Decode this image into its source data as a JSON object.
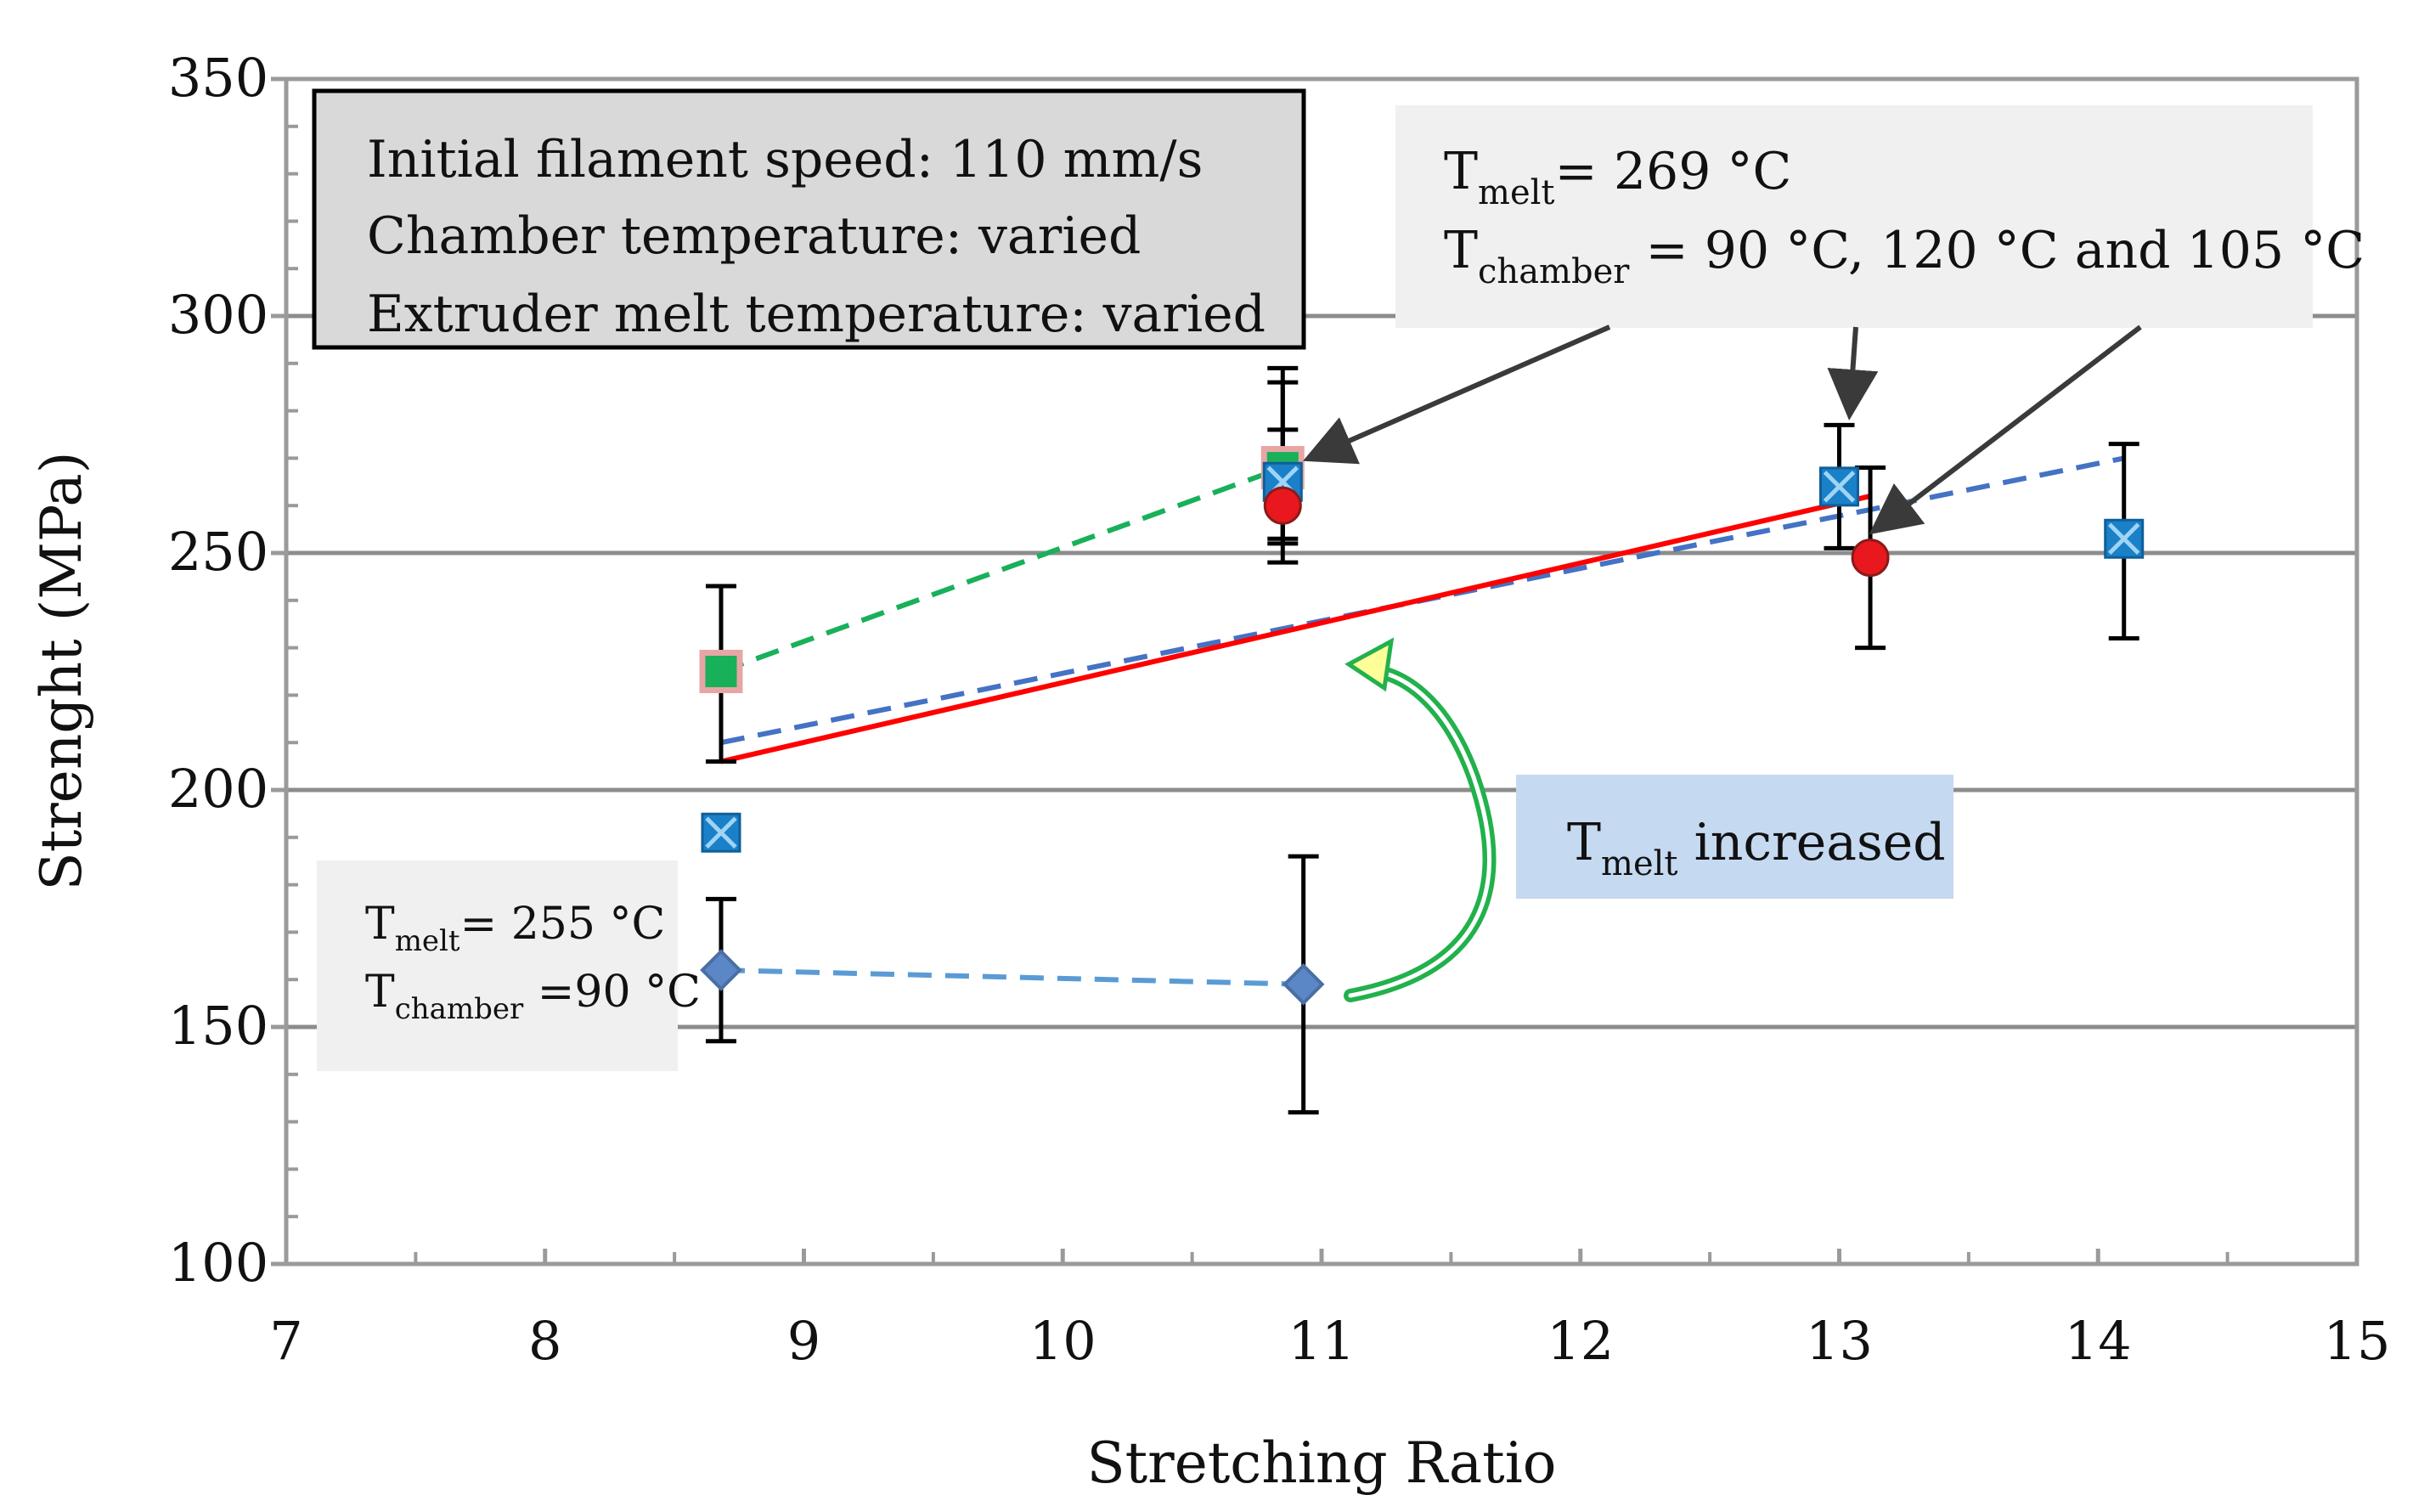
{
  "chart_data": {
    "type": "scatter",
    "xlabel": "Stretching Ratio",
    "ylabel": "Strenght (MPa)",
    "xlim": [
      7,
      15
    ],
    "ylim": [
      100,
      350
    ],
    "x_ticks": [
      7,
      8,
      9,
      10,
      11,
      12,
      13,
      14,
      15
    ],
    "y_ticks": [
      100,
      150,
      200,
      250,
      300,
      350
    ],
    "x_tick_labels": [
      "7",
      "8",
      "9",
      "10",
      "11",
      "12",
      "13",
      "14",
      "15"
    ],
    "y_tick_labels": [
      "100",
      "150",
      "200",
      "250",
      "300",
      "350"
    ],
    "grid": "horizontal at 150, 200, 250, 300",
    "series": [
      {
        "name": "Tmelt 255 °C, Tchamber 90 °C",
        "marker": "diamond",
        "color": "#5b87c7",
        "points": [
          {
            "x": 8.68,
            "y": 162,
            "err_low": 147,
            "err_high": 177
          },
          {
            "x": 10.93,
            "y": 159,
            "err_low": 132,
            "err_high": 186
          }
        ],
        "connect": "dashed",
        "line_color": "#5b9bd5"
      },
      {
        "name": "Tmelt 269 °C, Tchamber 90 °C",
        "marker": "square",
        "color": "#19b05a",
        "points": [
          {
            "x": 8.68,
            "y": 225,
            "err_low": 206,
            "err_high": 243
          },
          {
            "x": 10.85,
            "y": 268,
            "err_low": 248,
            "err_high": 289
          }
        ],
        "connect": "dashed",
        "line_color": "#19b05a"
      },
      {
        "name": "Tmelt 269 °C, Tchamber 120 °C",
        "marker": "square-x",
        "color": "#1a80c8",
        "points": [
          {
            "x": 8.68,
            "y": 191,
            "err_low": 190,
            "err_high": 194
          },
          {
            "x": 10.85,
            "y": 265,
            "err_low": 252,
            "err_high": 286
          },
          {
            "x": 13.0,
            "y": 264,
            "err_low": 251,
            "err_high": 277
          },
          {
            "x": 14.1,
            "y": 253,
            "err_low": 232,
            "err_high": 273
          }
        ],
        "trendline": {
          "x0": 8.68,
          "y0": 210,
          "x1": 14.1,
          "y1": 270,
          "style": "dashed",
          "color": "#4472c4"
        }
      },
      {
        "name": "Tmelt 269 °C, Tchamber 105 °C",
        "marker": "circle",
        "color": "#e8181e",
        "points": [
          {
            "x": 10.85,
            "y": 260,
            "err_low": 253,
            "err_high": 276
          },
          {
            "x": 13.12,
            "y": 249,
            "err_low": 230,
            "err_high": 268
          }
        ],
        "trendline": {
          "x0": 8.68,
          "y0": 206,
          "x1": 13.12,
          "y1": 262,
          "style": "solid",
          "color": "#ff0000"
        }
      }
    ]
  },
  "annotations": {
    "settings_box": {
      "line1": "Initial filament speed: 110 mm/s",
      "line2": "Chamber temperature: varied",
      "line3": "Extruder melt temperature: varied"
    },
    "top_right_box": {
      "t1": "T",
      "t1_sub": "melt",
      "t1_rest": "= 269 °C",
      "t2": "T",
      "t2_sub": "chamber",
      "t2_rest": " = 90 °C, 120 °C and 105 °C"
    },
    "bottom_left_box": {
      "t1": "T",
      "t1_sub": "melt",
      "t1_rest": "= 255 °C",
      "t2": "T",
      "t2_sub": "chamber",
      "t2_rest": " =90 °C"
    },
    "increase_box": {
      "t": "T",
      "t_sub": "melt",
      "t_rest": " increased"
    }
  },
  "colors": {
    "axis": "#9a9a9a",
    "grid": "#8c8c8c",
    "arrow": "#3a3a3a",
    "curved_arrow": "#22b14c",
    "settings_box_fill": "#d9d9d9",
    "note_fill": "#f0f0f0",
    "increase_fill": "#c5d9f1"
  }
}
